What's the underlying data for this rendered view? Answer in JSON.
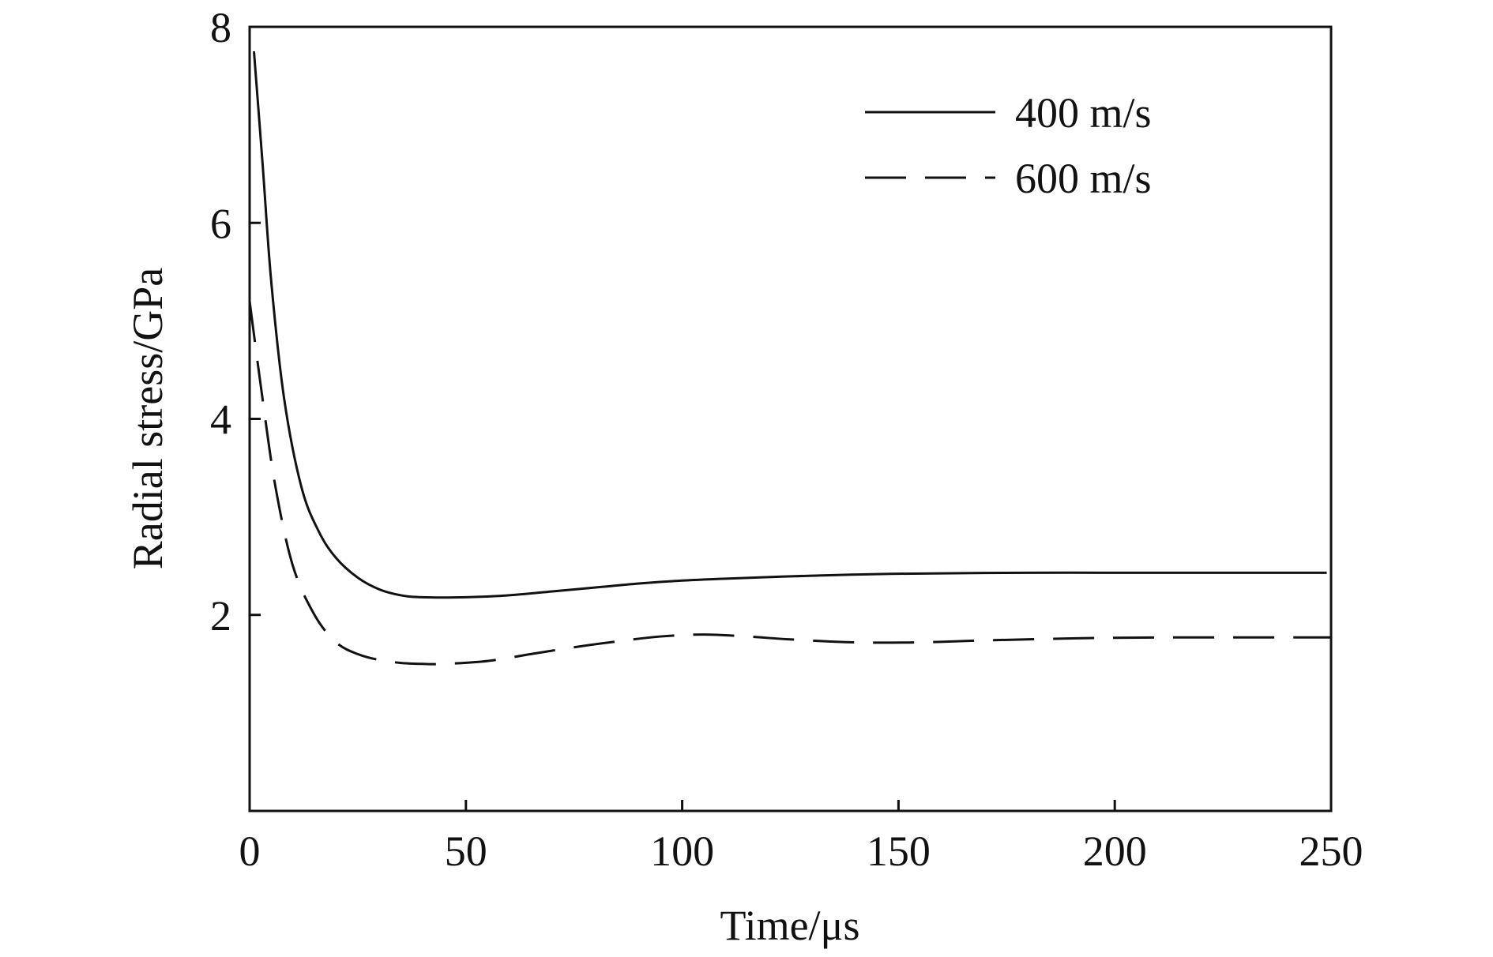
{
  "chart_data": {
    "type": "line",
    "title": "",
    "xlabel": "Time/μs",
    "ylabel": "Radial stress/GPa",
    "xlim": [
      0,
      250
    ],
    "ylim": [
      0,
      8
    ],
    "x_ticks": [
      "0",
      "50",
      "100",
      "150",
      "200",
      "250"
    ],
    "y_ticks": [
      "2",
      "4",
      "6",
      "8"
    ],
    "grid": false,
    "legend_position": "top-right",
    "series": [
      {
        "name": "400 m/s",
        "line_style": "solid",
        "color": "#111111",
        "points": [
          [
            1,
            7.75
          ],
          [
            3,
            6.6
          ],
          [
            5,
            5.4
          ],
          [
            8,
            4.2
          ],
          [
            12,
            3.3
          ],
          [
            16,
            2.85
          ],
          [
            20,
            2.58
          ],
          [
            25,
            2.38
          ],
          [
            30,
            2.26
          ],
          [
            35,
            2.2
          ],
          [
            40,
            2.18
          ],
          [
            50,
            2.18
          ],
          [
            60,
            2.2
          ],
          [
            70,
            2.24
          ],
          [
            80,
            2.28
          ],
          [
            90,
            2.32
          ],
          [
            100,
            2.35
          ],
          [
            110,
            2.37
          ],
          [
            130,
            2.4
          ],
          [
            150,
            2.42
          ],
          [
            180,
            2.43
          ],
          [
            210,
            2.43
          ],
          [
            249,
            2.43
          ]
        ]
      },
      {
        "name": "600 m/s",
        "line_style": "dashed",
        "color": "#111111",
        "points": [
          [
            0,
            5.2
          ],
          [
            3,
            4.2
          ],
          [
            6,
            3.3
          ],
          [
            10,
            2.5
          ],
          [
            15,
            2.0
          ],
          [
            20,
            1.72
          ],
          [
            25,
            1.6
          ],
          [
            30,
            1.54
          ],
          [
            35,
            1.51
          ],
          [
            40,
            1.5
          ],
          [
            45,
            1.5
          ],
          [
            55,
            1.53
          ],
          [
            65,
            1.6
          ],
          [
            75,
            1.67
          ],
          [
            85,
            1.73
          ],
          [
            95,
            1.78
          ],
          [
            105,
            1.8
          ],
          [
            115,
            1.78
          ],
          [
            125,
            1.75
          ],
          [
            140,
            1.72
          ],
          [
            155,
            1.72
          ],
          [
            170,
            1.74
          ],
          [
            190,
            1.76
          ],
          [
            210,
            1.77
          ],
          [
            250,
            1.77
          ]
        ]
      }
    ]
  }
}
